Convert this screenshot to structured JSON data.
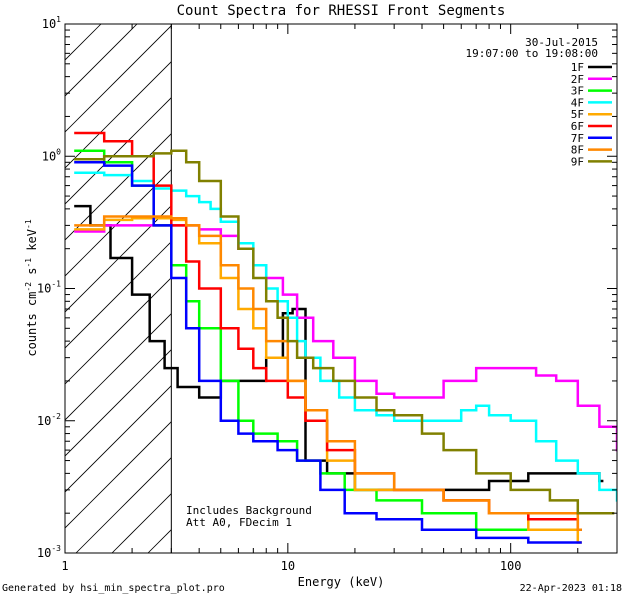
{
  "chart_data": {
    "type": "line",
    "title": "Count Spectra for RHESSI Front Segments",
    "xlabel": "Energy (keV)",
    "ylabel_parts": [
      "counts cm",
      "-2",
      " s",
      "-1",
      " keV",
      "-1"
    ],
    "xscale": "log",
    "yscale": "log",
    "xlim": [
      1,
      300
    ],
    "ylim": [
      0.001,
      10
    ],
    "x_tick_labels": [
      {
        "value": 1,
        "label": "1"
      },
      {
        "value": 10,
        "label": "10"
      },
      {
        "value": 100,
        "label": "100"
      }
    ],
    "y_tick_labels": [
      {
        "value": 10,
        "base": "10",
        "exp": "1"
      },
      {
        "value": 1,
        "base": "10",
        "exp": "0"
      },
      {
        "value": 0.1,
        "base": "10",
        "exp": "-1"
      },
      {
        "value": 0.01,
        "base": "10",
        "exp": "-2"
      },
      {
        "value": 0.001,
        "base": "10",
        "exp": "-3"
      }
    ],
    "date": "30-Jul-2015",
    "time_range": "19:07:00 to 19:08:00",
    "excluded_region_max_keV": 3,
    "annotations": [
      "Includes Background",
      "Att A0, FDecim 1"
    ],
    "legend_position": "top-right",
    "series": [
      {
        "name": "1F",
        "color": "#000000",
        "points": [
          [
            1.1,
            0.42
          ],
          [
            1.3,
            0.3
          ],
          [
            1.6,
            0.17
          ],
          [
            2.0,
            0.09
          ],
          [
            2.4,
            0.04
          ],
          [
            2.8,
            0.025
          ],
          [
            3.2,
            0.018
          ],
          [
            4.0,
            0.015
          ],
          [
            5.0,
            0.02
          ],
          [
            6.5,
            0.02
          ],
          [
            8.0,
            0.03
          ],
          [
            9.5,
            0.065
          ],
          [
            10.5,
            0.07
          ],
          [
            12,
            0.005
          ],
          [
            15,
            0.004
          ],
          [
            20,
            0.003
          ],
          [
            30,
            0.003
          ],
          [
            50,
            0.003
          ],
          [
            80,
            0.0035
          ],
          [
            120,
            0.004
          ],
          [
            200,
            0.004
          ],
          [
            250,
            0.0035
          ]
        ]
      },
      {
        "name": "2F",
        "color": "#ff00ff",
        "points": [
          [
            1.1,
            0.27
          ],
          [
            1.5,
            0.3
          ],
          [
            2.0,
            0.3
          ],
          [
            2.5,
            0.3
          ],
          [
            3.0,
            0.3
          ],
          [
            4.0,
            0.28
          ],
          [
            5.0,
            0.25
          ],
          [
            6.0,
            0.2
          ],
          [
            7.0,
            0.15
          ],
          [
            8.0,
            0.12
          ],
          [
            9.5,
            0.09
          ],
          [
            11,
            0.06
          ],
          [
            13,
            0.04
          ],
          [
            16,
            0.03
          ],
          [
            20,
            0.02
          ],
          [
            25,
            0.016
          ],
          [
            30,
            0.015
          ],
          [
            40,
            0.015
          ],
          [
            50,
            0.02
          ],
          [
            70,
            0.025
          ],
          [
            100,
            0.025
          ],
          [
            130,
            0.022
          ],
          [
            160,
            0.02
          ],
          [
            200,
            0.013
          ],
          [
            250,
            0.009
          ],
          [
            300,
            0.006
          ]
        ]
      },
      {
        "name": "3F",
        "color": "#00ff00",
        "points": [
          [
            1.1,
            1.1
          ],
          [
            1.5,
            0.9
          ],
          [
            2.0,
            0.6
          ],
          [
            2.5,
            0.3
          ],
          [
            3.0,
            0.15
          ],
          [
            3.5,
            0.08
          ],
          [
            4.0,
            0.05
          ],
          [
            5.0,
            0.02
          ],
          [
            6.0,
            0.01
          ],
          [
            7.0,
            0.008
          ],
          [
            9.0,
            0.007
          ],
          [
            11,
            0.005
          ],
          [
            14,
            0.004
          ],
          [
            18,
            0.003
          ],
          [
            25,
            0.0025
          ],
          [
            40,
            0.002
          ],
          [
            70,
            0.0015
          ],
          [
            120,
            0.0015
          ],
          [
            200,
            0.0015
          ]
        ]
      },
      {
        "name": "4F",
        "color": "#00ffff",
        "points": [
          [
            1.1,
            0.75
          ],
          [
            1.5,
            0.72
          ],
          [
            2.0,
            0.65
          ],
          [
            2.5,
            0.57
          ],
          [
            3.0,
            0.55
          ],
          [
            3.5,
            0.5
          ],
          [
            4.0,
            0.45
          ],
          [
            4.5,
            0.4
          ],
          [
            5.0,
            0.32
          ],
          [
            6.0,
            0.22
          ],
          [
            7.0,
            0.15
          ],
          [
            8.0,
            0.1
          ],
          [
            9.0,
            0.08
          ],
          [
            10,
            0.06
          ],
          [
            11,
            0.04
          ],
          [
            12,
            0.03
          ],
          [
            14,
            0.02
          ],
          [
            17,
            0.015
          ],
          [
            20,
            0.012
          ],
          [
            25,
            0.011
          ],
          [
            30,
            0.01
          ],
          [
            40,
            0.01
          ],
          [
            50,
            0.01
          ],
          [
            60,
            0.012
          ],
          [
            70,
            0.013
          ],
          [
            80,
            0.011
          ],
          [
            100,
            0.01
          ],
          [
            130,
            0.007
          ],
          [
            160,
            0.005
          ],
          [
            200,
            0.004
          ],
          [
            250,
            0.003
          ],
          [
            300,
            0.0025
          ]
        ]
      },
      {
        "name": "5F",
        "color": "#ffaa00",
        "points": [
          [
            1.1,
            0.28
          ],
          [
            1.5,
            0.33
          ],
          [
            2.0,
            0.34
          ],
          [
            2.5,
            0.34
          ],
          [
            3.0,
            0.33
          ],
          [
            3.5,
            0.3
          ],
          [
            4.0,
            0.22
          ],
          [
            5.0,
            0.12
          ],
          [
            6.0,
            0.07
          ],
          [
            7.0,
            0.05
          ],
          [
            8.0,
            0.03
          ],
          [
            10,
            0.02
          ],
          [
            12,
            0.01
          ],
          [
            15,
            0.005
          ],
          [
            20,
            0.003
          ],
          [
            30,
            0.003
          ],
          [
            50,
            0.0025
          ],
          [
            80,
            0.002
          ],
          [
            120,
            0.0015
          ],
          [
            200,
            0.0012
          ]
        ]
      },
      {
        "name": "6F",
        "color": "#ff0000",
        "points": [
          [
            1.1,
            1.5
          ],
          [
            1.5,
            1.3
          ],
          [
            2.0,
            1.0
          ],
          [
            2.5,
            0.6
          ],
          [
            3.0,
            0.3
          ],
          [
            3.5,
            0.16
          ],
          [
            4.0,
            0.1
          ],
          [
            5.0,
            0.05
          ],
          [
            6.0,
            0.035
          ],
          [
            7.0,
            0.025
          ],
          [
            8.0,
            0.02
          ],
          [
            10,
            0.015
          ],
          [
            12,
            0.01
          ],
          [
            15,
            0.006
          ],
          [
            20,
            0.004
          ],
          [
            30,
            0.003
          ],
          [
            50,
            0.0025
          ],
          [
            80,
            0.002
          ],
          [
            120,
            0.0018
          ],
          [
            200,
            0.0015
          ]
        ]
      },
      {
        "name": "7F",
        "color": "#0000ff",
        "points": [
          [
            1.1,
            0.9
          ],
          [
            1.5,
            0.85
          ],
          [
            2.0,
            0.6
          ],
          [
            2.5,
            0.3
          ],
          [
            3.0,
            0.12
          ],
          [
            3.5,
            0.05
          ],
          [
            4.0,
            0.02
          ],
          [
            5.0,
            0.01
          ],
          [
            6.0,
            0.008
          ],
          [
            7.0,
            0.007
          ],
          [
            9.0,
            0.006
          ],
          [
            11,
            0.005
          ],
          [
            14,
            0.003
          ],
          [
            18,
            0.002
          ],
          [
            25,
            0.0018
          ],
          [
            40,
            0.0015
          ],
          [
            70,
            0.0013
          ],
          [
            120,
            0.0012
          ],
          [
            200,
            0.0012
          ]
        ]
      },
      {
        "name": "8F",
        "color": "#ff8800",
        "points": [
          [
            1.1,
            0.3
          ],
          [
            1.5,
            0.35
          ],
          [
            2.0,
            0.35
          ],
          [
            2.5,
            0.35
          ],
          [
            3.0,
            0.34
          ],
          [
            3.5,
            0.3
          ],
          [
            4.0,
            0.25
          ],
          [
            5.0,
            0.15
          ],
          [
            6.0,
            0.1
          ],
          [
            7.0,
            0.07
          ],
          [
            8.0,
            0.04
          ],
          [
            10,
            0.02
          ],
          [
            12,
            0.012
          ],
          [
            15,
            0.007
          ],
          [
            20,
            0.004
          ],
          [
            30,
            0.003
          ],
          [
            50,
            0.0025
          ],
          [
            80,
            0.002
          ],
          [
            120,
            0.002
          ],
          [
            200,
            0.0015
          ]
        ]
      },
      {
        "name": "9F",
        "color": "#808000",
        "points": [
          [
            1.1,
            0.95
          ],
          [
            1.5,
            1.0
          ],
          [
            2.0,
            1.0
          ],
          [
            2.5,
            1.05
          ],
          [
            3.0,
            1.1
          ],
          [
            3.5,
            0.9
          ],
          [
            4.0,
            0.65
          ],
          [
            5.0,
            0.35
          ],
          [
            6.0,
            0.2
          ],
          [
            7.0,
            0.12
          ],
          [
            8.0,
            0.08
          ],
          [
            9.0,
            0.06
          ],
          [
            10,
            0.04
          ],
          [
            11,
            0.03
          ],
          [
            13,
            0.025
          ],
          [
            16,
            0.02
          ],
          [
            20,
            0.015
          ],
          [
            25,
            0.012
          ],
          [
            30,
            0.011
          ],
          [
            40,
            0.008
          ],
          [
            50,
            0.006
          ],
          [
            70,
            0.004
          ],
          [
            100,
            0.003
          ],
          [
            150,
            0.0025
          ],
          [
            200,
            0.002
          ],
          [
            280,
            0.002
          ]
        ]
      }
    ]
  },
  "footer": {
    "generated_by": "Generated by hsi_min_spectra_plot.pro",
    "timestamp": "22-Apr-2023 01:18"
  }
}
